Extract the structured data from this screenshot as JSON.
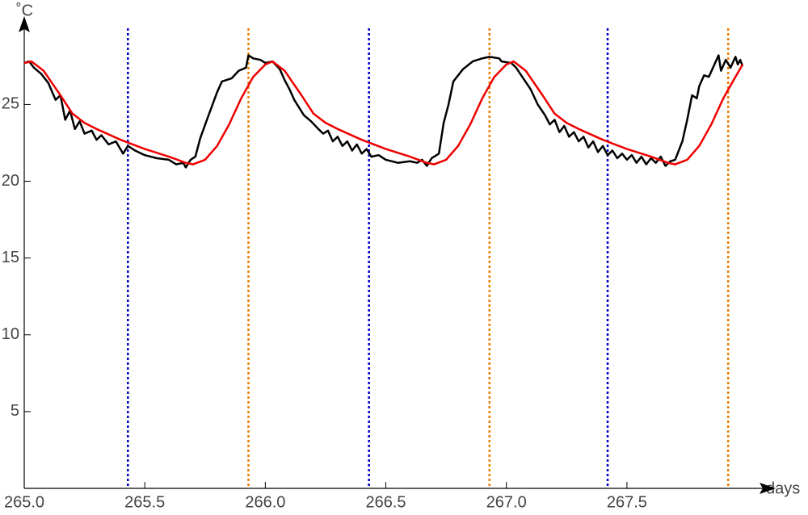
{
  "chart_data": {
    "type": "line",
    "xlabel": "days",
    "ylabel": "˚C",
    "xlim": [
      265,
      268.05
    ],
    "ylim": [
      0,
      29.7
    ],
    "xticks": [
      {
        "value": 265,
        "label": "265.0"
      },
      {
        "value": 265.5,
        "label": "265.5"
      },
      {
        "value": 266,
        "label": "266.0"
      },
      {
        "value": 266.5,
        "label": "266.5"
      },
      {
        "value": 267,
        "label": "267.0"
      },
      {
        "value": 267.5,
        "label": "267.5"
      }
    ],
    "yticks": [
      5,
      10,
      15,
      20,
      25
    ],
    "vertical_lines": [
      {
        "x": 265.43,
        "color": "#0000cc"
      },
      {
        "x": 266.43,
        "color": "#0000cc"
      },
      {
        "x": 267.42,
        "color": "#0000cc"
      },
      {
        "x": 265.93,
        "color": "#ee7d00"
      },
      {
        "x": 266.93,
        "color": "#ee7d00"
      },
      {
        "x": 267.92,
        "color": "#ee7d00"
      }
    ],
    "series": [
      {
        "color": "#000000",
        "x": [
          265.0,
          265.02,
          265.04,
          265.07,
          265.1,
          265.13,
          265.15,
          265.17,
          265.19,
          265.21,
          265.23,
          265.25,
          265.28,
          265.3,
          265.32,
          265.35,
          265.38,
          265.41,
          265.43,
          265.46,
          265.5,
          265.55,
          265.6,
          265.63,
          265.66,
          265.67,
          265.69,
          265.71,
          265.73,
          265.76,
          265.8,
          265.82,
          265.86,
          265.89,
          265.92,
          265.93,
          265.95,
          265.98,
          266.0,
          266.03,
          266.06,
          266.08,
          266.1,
          266.12,
          266.14,
          266.16,
          266.19,
          266.22,
          266.24,
          266.26,
          266.28,
          266.3,
          266.32,
          266.34,
          266.36,
          266.38,
          266.4,
          266.42,
          266.44,
          266.47,
          266.5,
          266.55,
          266.6,
          266.63,
          266.65,
          266.67,
          266.69,
          266.72,
          266.74,
          266.76,
          266.78,
          266.82,
          266.86,
          266.9,
          266.93,
          266.97,
          266.98,
          267.02,
          267.04,
          267.07,
          267.1,
          267.13,
          267.16,
          267.18,
          267.2,
          267.22,
          267.24,
          267.26,
          267.28,
          267.3,
          267.32,
          267.34,
          267.36,
          267.38,
          267.4,
          267.42,
          267.44,
          267.46,
          267.48,
          267.5,
          267.52,
          267.54,
          267.56,
          267.58,
          267.6,
          267.62,
          267.64,
          267.66,
          267.68,
          267.7,
          267.73,
          267.75,
          267.77,
          267.79,
          267.8,
          267.82,
          267.84,
          267.86,
          267.88,
          267.89,
          267.91,
          267.93,
          267.95,
          267.96,
          267.97,
          267.98
        ],
        "values": [
          27.7,
          27.8,
          27.4,
          27.0,
          26.4,
          25.3,
          25.6,
          24.0,
          24.6,
          23.4,
          23.9,
          23.1,
          23.3,
          22.7,
          23.0,
          22.4,
          22.6,
          21.8,
          22.3,
          22.0,
          21.7,
          21.5,
          21.4,
          21.1,
          21.2,
          20.9,
          21.4,
          21.6,
          22.8,
          24.1,
          25.8,
          26.5,
          26.7,
          27.2,
          27.4,
          28.2,
          28.0,
          27.9,
          27.7,
          27.8,
          27.3,
          26.6,
          26.0,
          25.3,
          24.8,
          24.3,
          23.9,
          23.4,
          23.1,
          23.3,
          22.6,
          22.9,
          22.3,
          22.6,
          22.0,
          22.4,
          21.8,
          22.1,
          21.6,
          21.7,
          21.4,
          21.2,
          21.3,
          21.2,
          21.4,
          21.0,
          21.5,
          21.8,
          23.8,
          25.0,
          26.5,
          27.3,
          27.8,
          28.0,
          28.1,
          28.0,
          27.8,
          27.7,
          27.4,
          26.7,
          26.0,
          25.0,
          24.3,
          23.7,
          24.0,
          23.2,
          23.6,
          22.9,
          23.2,
          22.6,
          22.9,
          22.2,
          22.6,
          21.9,
          22.3,
          21.7,
          22.0,
          21.5,
          21.8,
          21.4,
          21.7,
          21.2,
          21.6,
          21.1,
          21.5,
          21.2,
          21.6,
          21.0,
          21.3,
          21.4,
          22.6,
          24.0,
          25.6,
          25.4,
          26.2,
          26.9,
          26.8,
          27.5,
          28.2,
          27.2,
          27.9,
          27.4,
          28.1,
          27.6,
          27.9,
          27.5
        ]
      },
      {
        "color": "#ee0000",
        "x": [
          265.0,
          265.03,
          265.08,
          265.15,
          265.2,
          265.25,
          265.3,
          265.4,
          265.5,
          265.6,
          265.67,
          265.7,
          265.75,
          265.8,
          265.85,
          265.9,
          265.95,
          266.0,
          266.03,
          266.08,
          266.15,
          266.2,
          266.25,
          266.3,
          266.4,
          266.5,
          266.6,
          266.67,
          266.7,
          266.75,
          266.8,
          266.85,
          266.9,
          266.95,
          267.0,
          267.03,
          267.08,
          267.15,
          267.2,
          267.25,
          267.3,
          267.4,
          267.5,
          267.6,
          267.67,
          267.7,
          267.75,
          267.8,
          267.85,
          267.9,
          267.95,
          267.98
        ],
        "values": [
          27.7,
          27.8,
          27.2,
          25.6,
          24.4,
          23.8,
          23.4,
          22.7,
          22.1,
          21.6,
          21.2,
          21.1,
          21.4,
          22.3,
          23.7,
          25.4,
          26.8,
          27.6,
          27.8,
          27.2,
          25.6,
          24.4,
          23.8,
          23.4,
          22.7,
          22.1,
          21.6,
          21.2,
          21.1,
          21.4,
          22.3,
          23.7,
          25.4,
          26.8,
          27.6,
          27.8,
          27.2,
          25.6,
          24.4,
          23.8,
          23.4,
          22.7,
          22.1,
          21.6,
          21.2,
          21.1,
          21.4,
          22.3,
          23.7,
          25.4,
          26.8,
          27.6
        ]
      }
    ]
  }
}
